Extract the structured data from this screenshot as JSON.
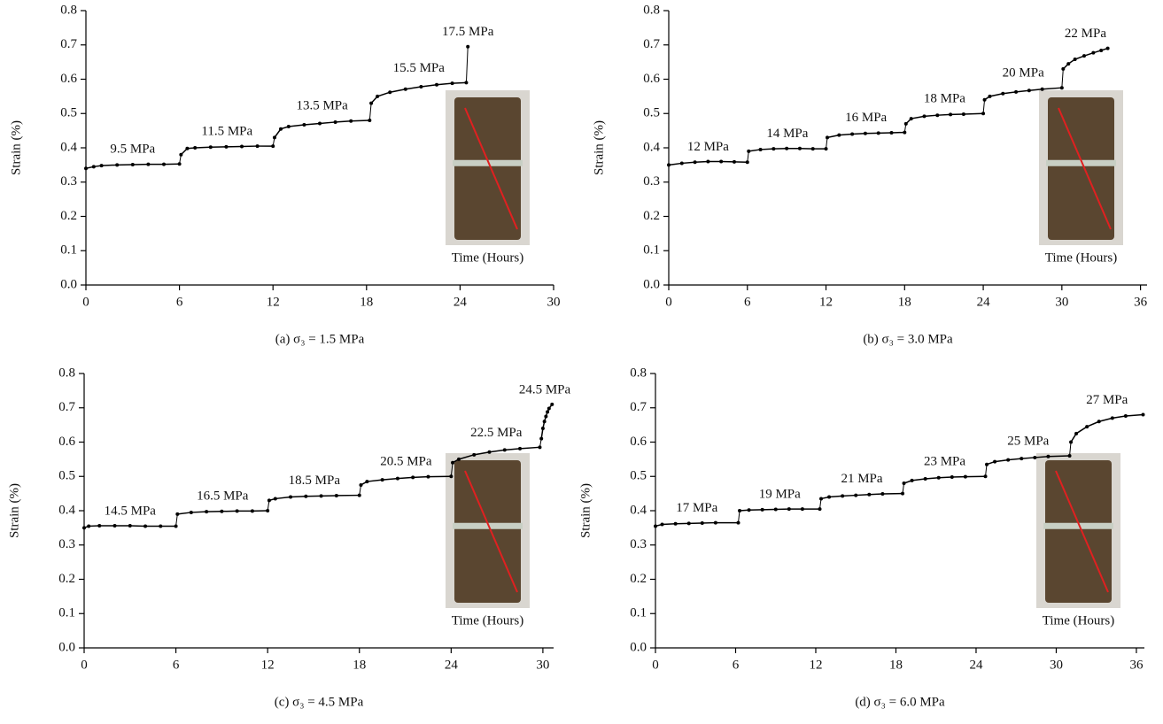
{
  "chart_data": [
    {
      "type": "line",
      "ylabel": "Strain (%)",
      "xlabel": "Time (Hours)",
      "caption": "(a) σ₃ = 1.5 MPa",
      "xlim": [
        0,
        30
      ],
      "xticks": [
        0,
        6,
        12,
        18,
        24,
        30
      ],
      "ylim": [
        0,
        0.8
      ],
      "yticks": [
        {
          "value": 0,
          "label": "0.0"
        },
        0.1,
        0.2,
        0.3,
        0.4,
        0.5,
        0.6,
        0.7,
        0.8
      ],
      "series": [
        {
          "label": "9.5 MPa",
          "color": "#000000",
          "x": [
            0,
            0.5,
            1,
            2,
            3,
            4,
            5,
            6
          ],
          "values": [
            0.34,
            0.345,
            0.348,
            0.35,
            0.351,
            0.352,
            0.352,
            0.353
          ]
        },
        {
          "label": "11.5 MPa",
          "color": "#000000",
          "x": [
            6.1,
            6.5,
            7,
            8,
            9,
            10,
            11,
            12
          ],
          "values": [
            0.38,
            0.398,
            0.4,
            0.402,
            0.403,
            0.404,
            0.405,
            0.405
          ]
        },
        {
          "label": "13.5 MPa",
          "color": "#000000",
          "x": [
            12.1,
            12.5,
            13,
            14,
            15,
            16,
            17,
            18.2
          ],
          "values": [
            0.43,
            0.455,
            0.462,
            0.467,
            0.471,
            0.475,
            0.478,
            0.48
          ]
        },
        {
          "label": "15.5 MPa",
          "color": "#000000",
          "x": [
            18.3,
            18.7,
            19.5,
            20.5,
            21.5,
            22.5,
            23.5,
            24.4
          ],
          "values": [
            0.53,
            0.55,
            0.562,
            0.571,
            0.578,
            0.584,
            0.588,
            0.59
          ]
        },
        {
          "label": "17.5 MPa",
          "color": "#000000",
          "x": [
            24.5
          ],
          "values": [
            0.695
          ]
        }
      ]
    },
    {
      "type": "line",
      "ylabel": "Strain (%)",
      "xlabel": "Time (Hours)",
      "caption": "(b) σ₃ = 3.0 MPa",
      "xlim": [
        0,
        36.5
      ],
      "xticks": [
        0,
        6,
        12,
        18,
        24,
        30,
        36
      ],
      "ylim": [
        0,
        0.8
      ],
      "yticks": [
        {
          "value": 0,
          "label": "0.0"
        },
        0.1,
        0.2,
        0.3,
        0.4,
        0.5,
        0.6,
        0.7,
        0.8
      ],
      "series": [
        {
          "label": "12 MPa",
          "color": "#000000",
          "x": [
            0,
            1,
            2,
            3,
            4,
            5,
            6
          ],
          "values": [
            0.35,
            0.355,
            0.358,
            0.36,
            0.36,
            0.359,
            0.358
          ]
        },
        {
          "label": "14 MPa",
          "color": "#000000",
          "x": [
            6.1,
            7,
            8,
            9,
            10,
            11,
            12
          ],
          "values": [
            0.39,
            0.395,
            0.397,
            0.398,
            0.398,
            0.397,
            0.397
          ]
        },
        {
          "label": "16 MPa",
          "color": "#000000",
          "x": [
            12.1,
            13,
            14,
            15,
            16,
            17,
            18
          ],
          "values": [
            0.43,
            0.437,
            0.44,
            0.442,
            0.443,
            0.444,
            0.445
          ]
        },
        {
          "label": "18 MPa",
          "color": "#000000",
          "x": [
            18.1,
            18.5,
            19.5,
            20.5,
            21.5,
            22.5,
            24
          ],
          "values": [
            0.47,
            0.485,
            0.492,
            0.495,
            0.497,
            0.498,
            0.5
          ]
        },
        {
          "label": "20 MPa",
          "color": "#000000",
          "x": [
            24.1,
            24.5,
            25.5,
            26.5,
            27.5,
            28.5,
            30
          ],
          "values": [
            0.54,
            0.55,
            0.558,
            0.563,
            0.567,
            0.571,
            0.575
          ]
        },
        {
          "label": "22 MPa",
          "color": "#000000",
          "x": [
            30.1,
            30.5,
            31,
            31.7,
            32.4,
            33,
            33.5
          ],
          "values": [
            0.63,
            0.645,
            0.658,
            0.668,
            0.677,
            0.684,
            0.69
          ]
        }
      ]
    },
    {
      "type": "line",
      "ylabel": "Strain (%)",
      "xlabel": "Time (Hours)",
      "caption": "(c) σ₃ = 4.5 MPa",
      "xlim": [
        0,
        30.7
      ],
      "xticks": [
        0,
        6,
        12,
        18,
        24,
        30
      ],
      "ylim": [
        0,
        0.8
      ],
      "yticks": [
        {
          "value": 0,
          "label": "0.0"
        },
        0.1,
        0.2,
        0.3,
        0.4,
        0.5,
        0.6,
        0.7,
        0.8
      ],
      "series": [
        {
          "label": "14.5 MPa",
          "color": "#000000",
          "x": [
            0,
            0.3,
            1,
            2,
            3,
            4,
            5,
            6
          ],
          "values": [
            0.35,
            0.355,
            0.356,
            0.356,
            0.356,
            0.355,
            0.355,
            0.355
          ]
        },
        {
          "label": "16.5 MPa",
          "color": "#000000",
          "x": [
            6.1,
            7,
            8,
            9,
            10,
            11,
            12
          ],
          "values": [
            0.39,
            0.395,
            0.397,
            0.398,
            0.399,
            0.399,
            0.4
          ]
        },
        {
          "label": "18.5 MPa",
          "color": "#000000",
          "x": [
            12.1,
            12.5,
            13.5,
            14.5,
            15.5,
            16.5,
            18
          ],
          "values": [
            0.43,
            0.435,
            0.44,
            0.442,
            0.443,
            0.444,
            0.445
          ]
        },
        {
          "label": "20.5 MPa",
          "color": "#000000",
          "x": [
            18.1,
            18.5,
            19.5,
            20.5,
            21.5,
            22.5,
            24
          ],
          "values": [
            0.475,
            0.485,
            0.49,
            0.494,
            0.497,
            0.499,
            0.5
          ]
        },
        {
          "label": "22.5 MPa",
          "color": "#000000",
          "x": [
            24.1,
            24.5,
            25.5,
            26.5,
            27.5,
            28.5,
            29.8
          ],
          "values": [
            0.54,
            0.55,
            0.563,
            0.571,
            0.577,
            0.581,
            0.585
          ]
        },
        {
          "label": "24.5 MPa",
          "color": "#000000",
          "x": [
            29.9,
            30,
            30.1,
            30.2,
            30.3,
            30.4,
            30.6
          ],
          "values": [
            0.61,
            0.64,
            0.66,
            0.675,
            0.688,
            0.698,
            0.71
          ]
        }
      ]
    },
    {
      "type": "line",
      "ylabel": "Strain (%)",
      "xlabel": "Time (Hours)",
      "caption": "(d) σ₃ = 6.0 MPa",
      "xlim": [
        0,
        36.6
      ],
      "xticks": [
        0,
        6,
        12,
        18,
        24,
        30,
        36
      ],
      "ylim": [
        0,
        0.8
      ],
      "yticks": [
        {
          "value": 0,
          "label": "0.0"
        },
        0.1,
        0.2,
        0.3,
        0.4,
        0.5,
        0.6,
        0.7,
        0.8
      ],
      "series": [
        {
          "label": "17 MPa",
          "color": "#000000",
          "x": [
            0,
            0.5,
            1.5,
            2.5,
            3.5,
            4.5,
            6.2
          ],
          "values": [
            0.355,
            0.36,
            0.362,
            0.363,
            0.364,
            0.365,
            0.365
          ]
        },
        {
          "label": "19 MPa",
          "color": "#000000",
          "x": [
            6.3,
            7,
            8,
            9,
            10,
            11,
            12.3
          ],
          "values": [
            0.4,
            0.402,
            0.403,
            0.404,
            0.405,
            0.405,
            0.405
          ]
        },
        {
          "label": "21 MPa",
          "color": "#000000",
          "x": [
            12.4,
            13,
            14,
            15,
            16,
            17,
            18.5
          ],
          "values": [
            0.435,
            0.44,
            0.443,
            0.445,
            0.447,
            0.449,
            0.45
          ]
        },
        {
          "label": "23 MPa",
          "color": "#000000",
          "x": [
            18.6,
            19.2,
            20.2,
            21.2,
            22.2,
            23.2,
            24.7
          ],
          "values": [
            0.48,
            0.488,
            0.493,
            0.496,
            0.498,
            0.499,
            0.5
          ]
        },
        {
          "label": "25 MPa",
          "color": "#000000",
          "x": [
            24.8,
            25.4,
            26.4,
            27.4,
            28.4,
            29.4,
            31
          ],
          "values": [
            0.535,
            0.543,
            0.548,
            0.552,
            0.555,
            0.558,
            0.56
          ]
        },
        {
          "label": "27 MPa",
          "color": "#000000",
          "x": [
            31.1,
            31.5,
            32.3,
            33.2,
            34.2,
            35.2,
            36.5
          ],
          "values": [
            0.6,
            0.625,
            0.645,
            0.66,
            0.67,
            0.676,
            0.68
          ]
        }
      ]
    }
  ]
}
